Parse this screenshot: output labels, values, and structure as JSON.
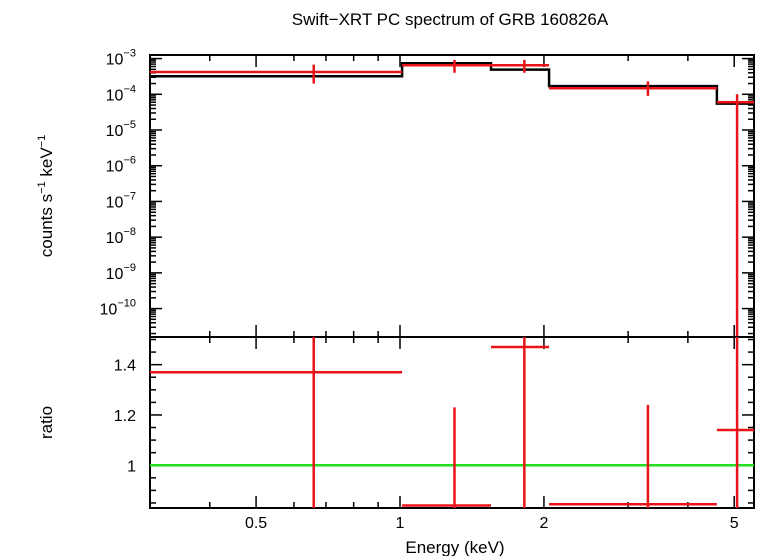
{
  "chart_data": {
    "type": "line",
    "title": "Swift−XRT PC spectrum of GRB 160826A",
    "xlabel": "Energy (keV)",
    "x_scale": "log",
    "xlim": [
      0.3,
      5.5
    ],
    "x_ticks": [
      {
        "value": 0.5,
        "label": "0.5"
      },
      {
        "value": 1,
        "label": "1"
      },
      {
        "value": 2,
        "label": "2"
      },
      {
        "value": 5,
        "label": "5"
      }
    ],
    "panels": [
      {
        "name": "spectrum",
        "ylabel": {
          "base": "counts s",
          "sup1": "−1",
          "mid": " keV",
          "sup2": "−1"
        },
        "y_scale": "log",
        "ylim": [
          1.6e-11,
          0.00126
        ],
        "y_ticks": [
          {
            "value": 0.001,
            "base": "10",
            "exp": "−3"
          },
          {
            "value": 0.0001,
            "base": "10",
            "exp": "−4"
          },
          {
            "value": 1e-05,
            "base": "10",
            "exp": "−5"
          },
          {
            "value": 1e-06,
            "base": "10",
            "exp": "−6"
          },
          {
            "value": 1e-07,
            "base": "10",
            "exp": "−7"
          },
          {
            "value": 1e-08,
            "base": "10",
            "exp": "−8"
          },
          {
            "value": 1e-09,
            "base": "10",
            "exp": "−9"
          },
          {
            "value": 1e-10,
            "base": "10",
            "exp": "−10"
          }
        ],
        "data": [
          {
            "x": 0.66,
            "xlo": 0.3,
            "xhi": 1.01,
            "y": 0.00042,
            "ylo": 0.0002,
            "yhi": 0.00068
          },
          {
            "x": 1.3,
            "xlo": 1.01,
            "xhi": 1.55,
            "y": 0.00065,
            "ylo": 0.0004,
            "yhi": 0.00092
          },
          {
            "x": 1.82,
            "xlo": 1.55,
            "xhi": 2.05,
            "y": 0.00065,
            "ylo": 0.0004,
            "yhi": 0.00092
          },
          {
            "x": 3.3,
            "xlo": 2.05,
            "xhi": 4.6,
            "y": 0.000148,
            "ylo": 9e-05,
            "yhi": 0.00023
          },
          {
            "x": 5.07,
            "xlo": 4.6,
            "xhi": 5.5,
            "y": 6e-05,
            "ylo": 1.6e-11,
            "yhi": 0.0001
          }
        ],
        "model": [
          {
            "xlo": 0.3,
            "xhi": 1.01,
            "y": 0.00032
          },
          {
            "xlo": 1.01,
            "xhi": 1.55,
            "y": 0.00074
          },
          {
            "xlo": 1.55,
            "xhi": 2.05,
            "y": 0.00049
          },
          {
            "xlo": 2.05,
            "xhi": 4.6,
            "y": 0.00017
          },
          {
            "xlo": 4.6,
            "xhi": 5.5,
            "y": 5.5e-05
          }
        ]
      },
      {
        "name": "ratio",
        "ylabel": {
          "base": "ratio",
          "sup1": "",
          "mid": "",
          "sup2": ""
        },
        "y_scale": "linear",
        "ylim": [
          0.83,
          1.51
        ],
        "y_ticks": [
          {
            "value": 1.4,
            "label": "1.4"
          },
          {
            "value": 1.2,
            "label": "1.2"
          },
          {
            "value": 1,
            "label": "1"
          }
        ],
        "reference_line": 1,
        "data": [
          {
            "x": 0.66,
            "xlo": 0.3,
            "xhi": 1.01,
            "y": 1.37,
            "ylo": 0.83,
            "yhi": 1.51
          },
          {
            "x": 1.3,
            "xlo": 1.01,
            "xhi": 1.55,
            "y": 0.84,
            "ylo": 0.83,
            "yhi": 1.23
          },
          {
            "x": 1.82,
            "xlo": 1.55,
            "xhi": 2.05,
            "y": 1.47,
            "ylo": 0.83,
            "yhi": 1.51
          },
          {
            "x": 3.3,
            "xlo": 2.05,
            "xhi": 4.6,
            "y": 0.845,
            "ylo": 0.83,
            "yhi": 1.24
          },
          {
            "x": 5.07,
            "xlo": 4.6,
            "xhi": 5.5,
            "y": 1.14,
            "ylo": 0.83,
            "yhi": 1.51
          }
        ]
      }
    ],
    "colors": {
      "data": "#e8141a",
      "model": "#000000",
      "reference": "#22dd22",
      "axes": "#000000"
    }
  }
}
